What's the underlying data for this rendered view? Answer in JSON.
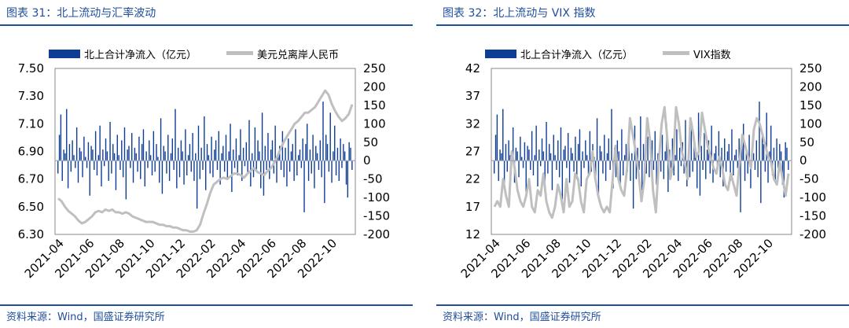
{
  "charts": [
    {
      "title": "图表 31：北上流动与汇率波动",
      "source": "资料来源：Wind，国盛证券研究所",
      "legend": [
        "北上合计净流入（亿元）",
        "美元兑离岸人民币"
      ],
      "colors": {
        "bar": "#0e3d96",
        "line": "#bfbfbf",
        "accent": "#1f4e9c"
      }
    },
    {
      "title": "图表 32：北上流动与 VIX 指数",
      "source": "资料来源：Wind，国盛证券研究所",
      "legend": [
        "北上合计净流入（亿元）",
        "VIX指数"
      ],
      "colors": {
        "bar": "#0e3d96",
        "line": "#bfbfbf",
        "accent": "#1f4e9c"
      }
    }
  ],
  "chart_data": [
    {
      "type": "bar",
      "title": "图表 31：北上流动与汇率波动",
      "x_tick_labels": [
        "2021-04",
        "2021-06",
        "2021-08",
        "2021-10",
        "2021-12",
        "2022-02",
        "2022-04",
        "2022-06",
        "2022-08",
        "2022-10"
      ],
      "x_range": [
        "2021-04",
        "2022-11"
      ],
      "left_axis": {
        "ticks": [
          "6.30",
          "6.50",
          "6.70",
          "6.90",
          "7.10",
          "7.30",
          "7.50"
        ],
        "ylim": [
          6.3,
          7.5
        ]
      },
      "right_axis": {
        "ticks": [
          "-200",
          "-150",
          "-100",
          "-50",
          "0",
          "50",
          "100",
          "150",
          "200",
          "250"
        ],
        "ylim": [
          -200,
          250
        ]
      },
      "legend_position": "top",
      "series": [
        {
          "name": "北上合计净流入（亿元）",
          "type": "bar",
          "axis": "right",
          "values": [
            -35,
            70,
            125,
            -55,
            30,
            20,
            140,
            -75,
            45,
            -30,
            55,
            15,
            -20,
            90,
            -60,
            35,
            25,
            -45,
            65,
            10,
            -20,
            50,
            -95,
            40,
            30,
            -25,
            80,
            -40,
            15,
            95,
            -70,
            30,
            -15,
            60,
            25,
            -55,
            105,
            -35,
            45,
            20,
            -80,
            70,
            15,
            -25,
            55,
            -45,
            90,
            -105,
            30,
            40,
            -20,
            75,
            -60,
            35,
            20,
            -30,
            65,
            -50,
            45,
            85,
            -70,
            25,
            -20,
            55,
            15,
            -40,
            80,
            -30,
            45,
            10,
            -60,
            115,
            -90,
            40,
            25,
            -35,
            70,
            -55,
            20,
            60,
            -25,
            140,
            -75,
            35,
            -45,
            55,
            25,
            -65,
            85,
            -40,
            15,
            45,
            -30,
            75,
            -55,
            20,
            -130,
            95,
            -50,
            35,
            -25,
            120,
            -80,
            45,
            15,
            -35,
            65,
            -45,
            30,
            55,
            -25,
            80,
            -65,
            20,
            40,
            -30,
            70,
            -50,
            25,
            100,
            -85,
            30,
            -20,
            60,
            -40,
            15,
            85,
            -55,
            35,
            -15,
            50,
            -35,
            110,
            -70,
            20,
            -45,
            90,
            -30,
            55,
            25,
            -75,
            130,
            -95,
            40,
            -25,
            75,
            -50,
            30,
            55,
            -35,
            95,
            -60,
            20,
            40,
            -25,
            80,
            -45,
            35,
            -70,
            60,
            -30,
            25,
            45,
            -55,
            85,
            -40,
            15,
            30,
            -20,
            60,
            -140,
            45,
            100,
            -55,
            30,
            -35,
            70,
            -75,
            40,
            20,
            -25,
            55,
            -45,
            160,
            -115,
            70,
            45,
            -30,
            130,
            -60,
            25,
            95,
            -40,
            35,
            -55,
            60,
            -20,
            45,
            25,
            -65,
            -100,
            50,
            35,
            -25
          ]
        },
        {
          "name": "美元兑离岸人民币",
          "type": "line",
          "axis": "left",
          "values": [
            6.56,
            6.54,
            6.5,
            6.47,
            6.45,
            6.43,
            6.4,
            6.38,
            6.39,
            6.41,
            6.43,
            6.46,
            6.47,
            6.46,
            6.48,
            6.47,
            6.48,
            6.46,
            6.46,
            6.45,
            6.46,
            6.45,
            6.43,
            6.42,
            6.41,
            6.4,
            6.39,
            6.39,
            6.39,
            6.38,
            6.37,
            6.37,
            6.36,
            6.36,
            6.35,
            6.35,
            6.34,
            6.33,
            6.33,
            6.32,
            6.32,
            6.33,
            6.37,
            6.45,
            6.52,
            6.6,
            6.66,
            6.68,
            6.7,
            6.71,
            6.7,
            6.72,
            6.74,
            6.74,
            6.73,
            6.71,
            6.74,
            6.76,
            6.78,
            6.75,
            6.74,
            6.73,
            6.76,
            6.78,
            6.82,
            6.87,
            6.93,
            6.98,
            7.02,
            7.06,
            7.1,
            7.12,
            7.15,
            7.18,
            7.18,
            7.2,
            7.22,
            7.26,
            7.3,
            7.34,
            7.31,
            7.24,
            7.19,
            7.15,
            7.12,
            7.14,
            7.17,
            7.24
          ]
        }
      ]
    },
    {
      "type": "bar",
      "title": "图表 32：北上流动与 VIX 指数",
      "x_tick_labels": [
        "2021-04",
        "2021-06",
        "2021-08",
        "2021-10",
        "2021-12",
        "2022-02",
        "2022-04",
        "2022-06",
        "2022-08",
        "2022-10"
      ],
      "x_range": [
        "2021-04",
        "2022-11"
      ],
      "left_axis": {
        "ticks": [
          "12",
          "17",
          "22",
          "27",
          "32",
          "37",
          "42"
        ],
        "ylim": [
          12,
          42
        ]
      },
      "right_axis": {
        "ticks": [
          "-200",
          "-150",
          "-100",
          "-50",
          "0",
          "50",
          "100",
          "150",
          "200",
          "250"
        ],
        "ylim": [
          -200,
          250
        ]
      },
      "legend_position": "top",
      "series": [
        {
          "name": "北上合计净流入（亿元）",
          "type": "bar",
          "axis": "right",
          "values": [
            -35,
            70,
            125,
            -55,
            30,
            20,
            140,
            -75,
            45,
            -30,
            55,
            15,
            -20,
            90,
            -60,
            35,
            25,
            -45,
            65,
            10,
            -20,
            50,
            -95,
            40,
            30,
            -25,
            80,
            -40,
            15,
            95,
            -70,
            30,
            -15,
            60,
            25,
            -55,
            105,
            -35,
            45,
            20,
            -80,
            70,
            15,
            -25,
            55,
            -45,
            90,
            -105,
            30,
            40,
            -20,
            75,
            -60,
            35,
            20,
            -30,
            65,
            -50,
            45,
            85,
            -70,
            25,
            -20,
            55,
            15,
            -40,
            80,
            -30,
            45,
            10,
            -60,
            115,
            -90,
            40,
            25,
            -35,
            70,
            -55,
            20,
            60,
            -25,
            140,
            -75,
            35,
            -45,
            55,
            25,
            -65,
            85,
            -40,
            15,
            45,
            -30,
            75,
            -55,
            20,
            -130,
            95,
            -50,
            35,
            -25,
            120,
            -80,
            45,
            15,
            -35,
            65,
            -45,
            30,
            55,
            -25,
            80,
            -65,
            20,
            40,
            -30,
            70,
            -50,
            25,
            100,
            -85,
            30,
            -20,
            60,
            -40,
            15,
            85,
            -55,
            35,
            -15,
            50,
            -35,
            110,
            -70,
            20,
            -45,
            90,
            -30,
            55,
            25,
            -75,
            130,
            -95,
            40,
            -25,
            75,
            -50,
            30,
            55,
            -35,
            95,
            -60,
            20,
            40,
            -25,
            80,
            -45,
            35,
            -70,
            60,
            -30,
            25,
            45,
            -55,
            85,
            -40,
            15,
            30,
            -20,
            60,
            -140,
            45,
            100,
            -55,
            30,
            -35,
            70,
            -75,
            40,
            20,
            -25,
            55,
            -45,
            160,
            -115,
            70,
            45,
            -30,
            130,
            -60,
            25,
            95,
            -40,
            35,
            -55,
            60,
            -20,
            45,
            25,
            -65,
            -100,
            50,
            35,
            -25
          ]
        },
        {
          "name": "VIX指数",
          "type": "line",
          "axis": "left",
          "values": [
            17,
            18,
            17,
            22,
            19,
            17,
            27,
            24,
            20,
            18,
            17,
            19,
            22,
            17,
            16,
            20,
            19,
            23,
            18,
            16,
            15,
            17,
            21,
            19,
            16,
            22,
            17,
            18,
            23,
            22,
            18,
            16,
            22,
            23,
            27,
            22,
            19,
            17,
            16,
            17,
            16,
            22,
            28,
            22,
            20,
            19,
            24,
            33,
            30,
            27,
            23,
            18,
            22,
            33,
            29,
            20,
            16,
            25,
            32,
            35,
            29,
            22,
            25,
            35,
            32,
            27,
            25,
            22,
            33,
            30,
            26,
            27,
            34,
            31,
            28,
            26,
            24,
            23,
            26,
            24,
            21,
            20,
            23,
            21,
            19,
            25,
            30,
            28,
            26,
            24,
            31,
            33,
            32,
            30,
            28,
            26,
            25,
            22,
            21,
            25,
            22,
            19,
            23
          ]
        }
      ]
    }
  ]
}
